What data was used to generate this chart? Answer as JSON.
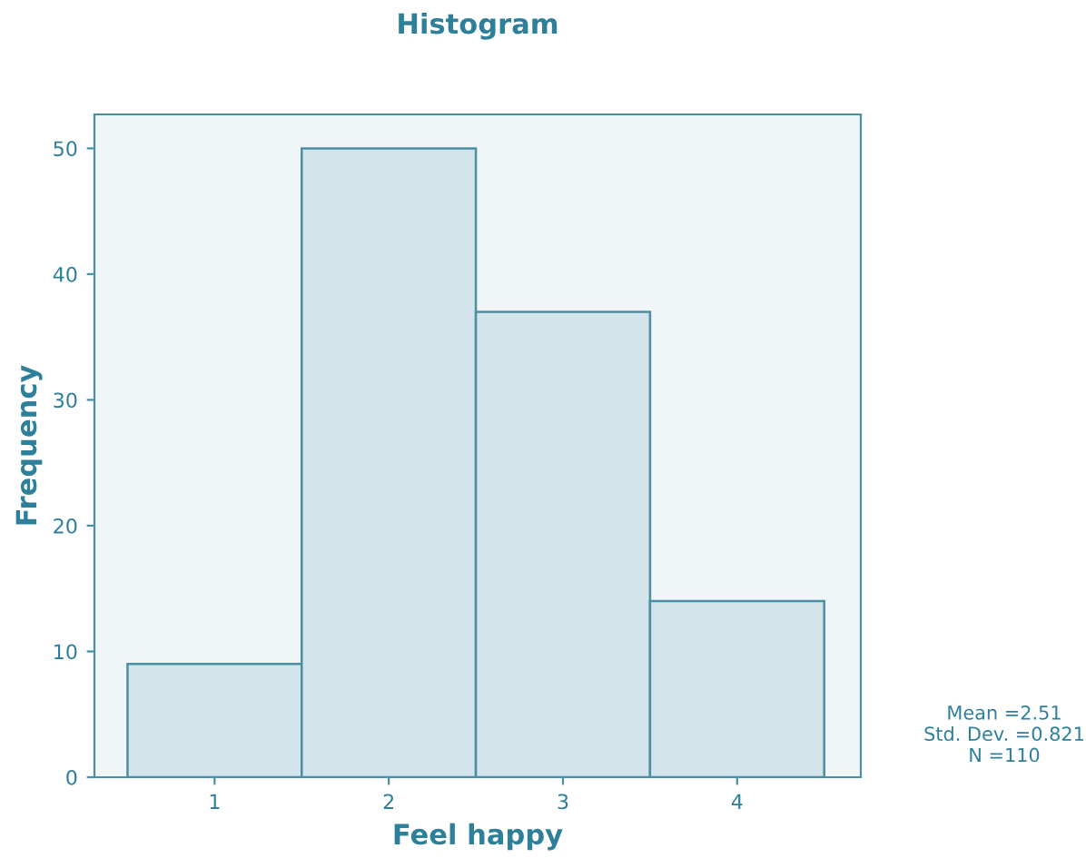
{
  "chart_data": {
    "type": "histogram",
    "title": "Histogram",
    "xlabel": "Feel happy",
    "ylabel": "Frequency",
    "bins": [
      0.5,
      1.5,
      2.5,
      3.5,
      4.5
    ],
    "values": [
      9,
      50,
      37,
      14
    ],
    "color": "#d3e4ea",
    "xlim": [
      0.31,
      4.71
    ],
    "xticks": [
      1,
      2,
      3,
      4
    ],
    "ylim": [
      0,
      52.7
    ],
    "yticks": [
      0,
      10,
      20,
      30,
      40,
      50
    ],
    "grid": false,
    "annotations": [
      "Mean =2.51\nStd. Dev. =0.821\nN =110"
    ]
  }
}
